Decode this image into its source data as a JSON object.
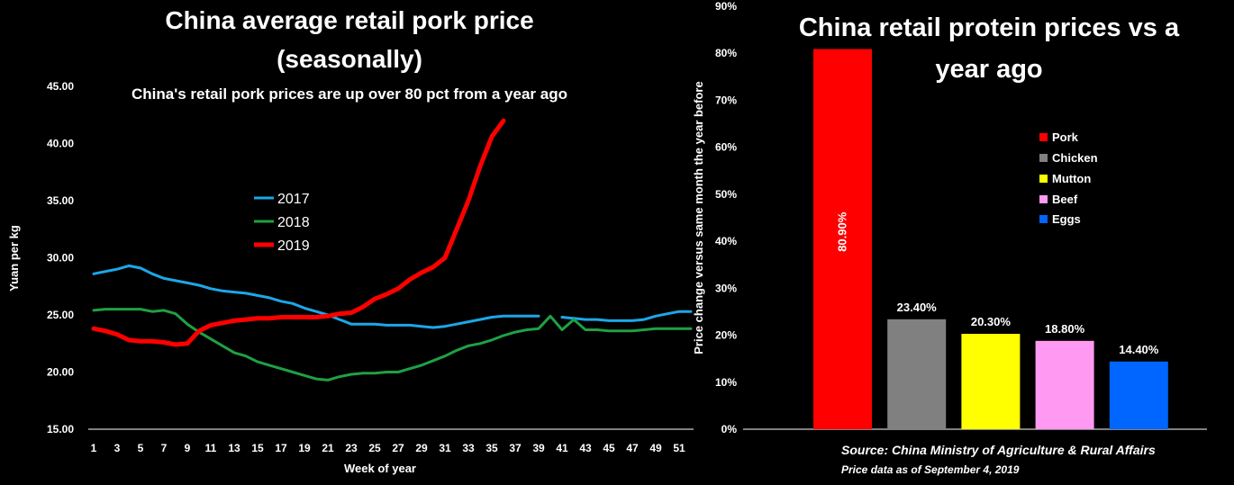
{
  "colors": {
    "background": "#000000",
    "text": "#ffffff",
    "y2017": "#1ca7e8",
    "y2018": "#1fa044",
    "y2019": "#ff0000",
    "pork": "#ff0000",
    "chicken": "#808080",
    "mutton": "#ffff00",
    "beef": "#ff99f2",
    "eggs": "#0066ff"
  },
  "chart_data": [
    {
      "type": "line",
      "title_line1": "China average retail pork price",
      "title_line2": "(seasonally)",
      "subtitle": "China's retail pork prices are up over 80 pct from a year ago",
      "xlabel": "Week of year",
      "ylabel": "Yuan per kg",
      "xlim": [
        1,
        52
      ],
      "ylim": [
        15,
        45
      ],
      "x_tick_labels": [
        "1",
        "3",
        "5",
        "7",
        "9",
        "11",
        "13",
        "15",
        "17",
        "19",
        "21",
        "23",
        "25",
        "27",
        "29",
        "31",
        "33",
        "35",
        "37",
        "39",
        "41",
        "43",
        "45",
        "47",
        "49",
        "51"
      ],
      "y_tick_labels": [
        "15.00",
        "20.00",
        "25.00",
        "30.00",
        "35.00",
        "40.00",
        "45.00"
      ],
      "grid": false,
      "legend_position": "center-left",
      "series": [
        {
          "name": "2017",
          "segments": [
            {
              "x": [
                1,
                2,
                3,
                4,
                5,
                6,
                7,
                8,
                9,
                10,
                11,
                12,
                13,
                14,
                15,
                16,
                17,
                18,
                19,
                20,
                21,
                22,
                23,
                24,
                25,
                26,
                27,
                28,
                29,
                30,
                31,
                32,
                33,
                34,
                35,
                36,
                37,
                38,
                39
              ],
              "y": [
                28.6,
                28.8,
                29.0,
                29.3,
                29.1,
                28.6,
                28.2,
                28.0,
                27.8,
                27.6,
                27.3,
                27.1,
                27.0,
                26.9,
                26.7,
                26.5,
                26.2,
                26.0,
                25.6,
                25.3,
                25.0,
                24.6,
                24.2,
                24.2,
                24.2,
                24.1,
                24.1,
                24.1,
                24.0,
                23.9,
                24.0,
                24.2,
                24.4,
                24.6,
                24.8,
                24.9,
                24.9,
                24.9,
                24.9
              ]
            },
            {
              "x": [
                41,
                42,
                43,
                44,
                45,
                46,
                47,
                48,
                49,
                50,
                51,
                52
              ],
              "y": [
                24.8,
                24.7,
                24.6,
                24.6,
                24.5,
                24.5,
                24.5,
                24.6,
                24.9,
                25.1,
                25.3,
                25.3
              ]
            }
          ]
        },
        {
          "name": "2018",
          "segments": [
            {
              "x": [
                1,
                2,
                3,
                4,
                5,
                6,
                7,
                8,
                9,
                10,
                11,
                12,
                13,
                14,
                15,
                16,
                17,
                18,
                19,
                20,
                21,
                22,
                23,
                24,
                25,
                26,
                27,
                28,
                29,
                30,
                31,
                32,
                33,
                34,
                35,
                36,
                37,
                38,
                39,
                40,
                41,
                42,
                43,
                44,
                45,
                46,
                47,
                48,
                49,
                50,
                51,
                52
              ],
              "y": [
                25.4,
                25.5,
                25.5,
                25.5,
                25.5,
                25.3,
                25.4,
                25.1,
                24.2,
                23.5,
                22.9,
                22.3,
                21.7,
                21.4,
                20.9,
                20.6,
                20.3,
                20.0,
                19.7,
                19.4,
                19.3,
                19.6,
                19.8,
                19.9,
                19.9,
                20.0,
                20.0,
                20.3,
                20.6,
                21.0,
                21.4,
                21.9,
                22.3,
                22.5,
                22.8,
                23.2,
                23.5,
                23.7,
                23.8,
                24.9,
                23.7,
                24.6,
                23.7,
                23.7,
                23.6,
                23.6,
                23.6,
                23.7,
                23.8,
                23.8,
                23.8,
                23.8
              ]
            }
          ]
        },
        {
          "name": "2019",
          "segments": [
            {
              "x": [
                1,
                2,
                3,
                4,
                5,
                6,
                7,
                8,
                9,
                10,
                11,
                12,
                13,
                14,
                15,
                16,
                17,
                18,
                19,
                20,
                21,
                22,
                23,
                24,
                25,
                26,
                27,
                28,
                29,
                30,
                31,
                32,
                33,
                34,
                35,
                36
              ],
              "y": [
                23.8,
                23.6,
                23.3,
                22.8,
                22.7,
                22.7,
                22.6,
                22.4,
                22.5,
                23.6,
                24.1,
                24.3,
                24.5,
                24.6,
                24.7,
                24.7,
                24.8,
                24.8,
                24.8,
                24.8,
                24.9,
                25.1,
                25.2,
                25.7,
                26.4,
                26.8,
                27.3,
                28.1,
                28.7,
                29.2,
                30.0,
                32.5,
                35.0,
                38.0,
                40.6,
                42.0
              ]
            }
          ]
        }
      ]
    },
    {
      "type": "bar",
      "title_line1": "China retail protein prices vs a",
      "title_line2": "year ago",
      "ylabel": "Price change versus same month the year before",
      "categories": [
        "Pork",
        "Chicken",
        "Mutton",
        "Beef",
        "Eggs"
      ],
      "values": [
        80.9,
        23.4,
        20.3,
        18.8,
        14.4
      ],
      "data_labels": [
        "80.90%",
        "23.40%",
        "20.30%",
        "18.80%",
        "14.40%"
      ],
      "ylim": [
        0,
        90
      ],
      "y_tick_labels": [
        "0%",
        "10%",
        "20%",
        "30%",
        "40%",
        "50%",
        "60%",
        "70%",
        "80%",
        "90%"
      ],
      "grid": false,
      "legend_position": "right",
      "source_line1": "Source:  China Ministry of Agriculture & Rural Affairs",
      "source_line2": "Price data as of September 4, 2019"
    }
  ]
}
